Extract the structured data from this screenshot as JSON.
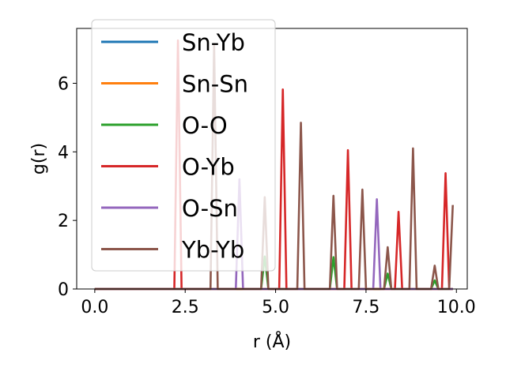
{
  "chart_data": {
    "type": "line",
    "title": "",
    "xlabel": "r (Å)",
    "ylabel": "g(r)",
    "xlim": [
      -0.5,
      10.3
    ],
    "ylim": [
      0,
      7.6
    ],
    "x_ticks": [
      0.0,
      2.5,
      5.0,
      7.5,
      10.0
    ],
    "x_tick_labels": [
      "0.0",
      "2.5",
      "5.0",
      "7.5",
      "10.0"
    ],
    "y_ticks": [
      0,
      2,
      4,
      6
    ],
    "y_tick_labels": [
      "0",
      "2",
      "4",
      "6"
    ],
    "grid": false,
    "legend_position": "top-left",
    "x_range": [
      0.0,
      9.9
    ],
    "peak_width": 0.1,
    "series": [
      {
        "name": "Sn-Yb",
        "color": "#1f77b4",
        "peaks": []
      },
      {
        "name": "Sn-Sn",
        "color": "#ff7f0e",
        "peaks": []
      },
      {
        "name": "O-O",
        "color": "#2ca02c",
        "peaks": [
          [
            4.7,
            0.95
          ],
          [
            6.6,
            0.93
          ],
          [
            8.1,
            0.45
          ],
          [
            9.4,
            0.25
          ]
        ]
      },
      {
        "name": "O-Yb",
        "color": "#d62728",
        "peaks": [
          [
            2.3,
            7.25
          ],
          [
            5.2,
            5.82
          ],
          [
            7.0,
            4.05
          ],
          [
            8.4,
            2.25
          ],
          [
            9.7,
            3.38
          ]
        ]
      },
      {
        "name": "O-Sn",
        "color": "#9467bd",
        "peaks": [
          [
            4.0,
            3.2
          ],
          [
            7.8,
            2.62
          ]
        ]
      },
      {
        "name": "Yb-Yb",
        "color": "#8c564b",
        "peaks": [
          [
            3.3,
            7.15
          ],
          [
            4.7,
            2.68
          ],
          [
            5.7,
            4.85
          ],
          [
            6.6,
            2.72
          ],
          [
            7.4,
            2.9
          ],
          [
            8.1,
            1.22
          ],
          [
            8.8,
            4.1
          ],
          [
            9.4,
            0.68
          ],
          [
            9.9,
            2.45
          ]
        ]
      }
    ]
  }
}
